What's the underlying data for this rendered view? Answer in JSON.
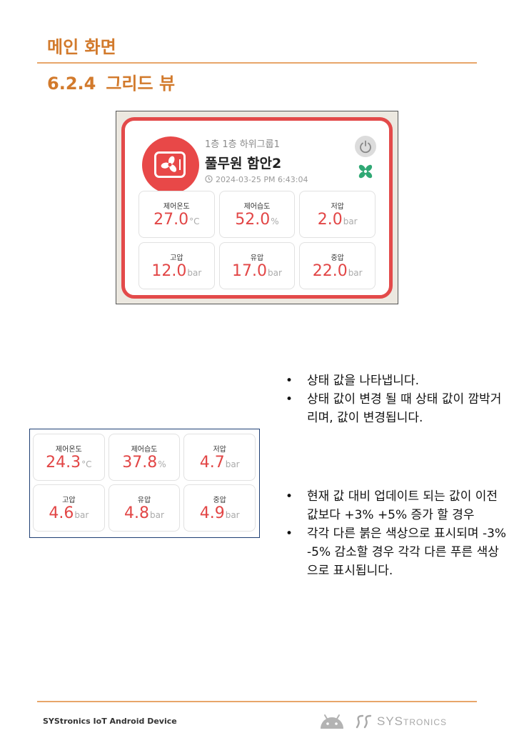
{
  "header": {
    "section_title": "메인 화면",
    "sub_number": "6.2.4",
    "sub_title": "그리드 뷰"
  },
  "device_card": {
    "group": "1층 1층 하위그룹1",
    "name": "풀무원 함안2",
    "timestamp": "2024-03-25 PM 6:43:04",
    "tiles": [
      {
        "label": "제어온도",
        "value": "27.0",
        "unit": "°C"
      },
      {
        "label": "제어습도",
        "value": "52.0",
        "unit": "%"
      },
      {
        "label": "저압",
        "value": "2.0",
        "unit": "bar"
      },
      {
        "label": "고압",
        "value": "12.0",
        "unit": "bar"
      },
      {
        "label": "유압",
        "value": "17.0",
        "unit": "bar"
      },
      {
        "label": "중압",
        "value": "22.0",
        "unit": "bar"
      }
    ]
  },
  "grid_example": {
    "tiles": [
      {
        "label": "제어온도",
        "value": "24.3",
        "unit": "°C"
      },
      {
        "label": "제어습도",
        "value": "37.8",
        "unit": "%"
      },
      {
        "label": "저압",
        "value": "4.7",
        "unit": "bar"
      },
      {
        "label": "고압",
        "value": "4.6",
        "unit": "bar"
      },
      {
        "label": "유압",
        "value": "4.8",
        "unit": "bar"
      },
      {
        "label": "중압",
        "value": "4.9",
        "unit": "bar"
      }
    ]
  },
  "bullets_1": [
    "상태 값을 나타냅니다.",
    "상태 값이 변경 될 때 상태 값이 깜박거리며, 값이 변경됩니다."
  ],
  "bullets_2": [
    "현재 값 대비 업데이트 되는 값이 이전 값보다 +3% +5% 증가 할 경우",
    "각각 다른 붉은 색상으로 표시되며 -3% -5% 감소할 경우 각각 다른 푸른 색상으로 표시됩니다."
  ],
  "footer": {
    "text": "SYStronics IoT Android Device",
    "brand_main": "SYS",
    "brand_rest": "TRONICS"
  },
  "colors": {
    "accent": "#d27a2c",
    "alert_red": "#e24646",
    "card_border": "#e34a4a"
  },
  "icons": [
    "fan-icon",
    "power-icon",
    "clock-icon",
    "fan-status-icon",
    "android-icon",
    "systronics-logo-icon"
  ]
}
